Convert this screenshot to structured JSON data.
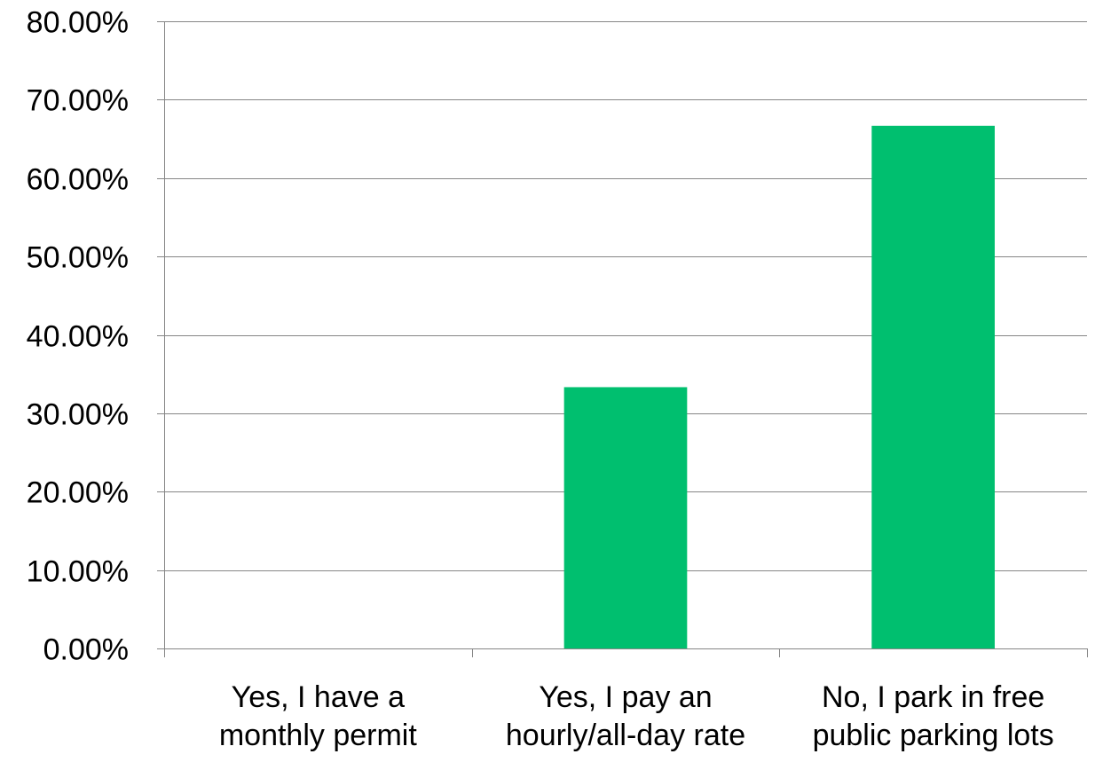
{
  "chart_data": {
    "type": "bar",
    "title": "",
    "xlabel": "",
    "ylabel": "",
    "categories": [
      [
        "Yes, I have a",
        "monthly permit"
      ],
      [
        "Yes, I pay an",
        "hourly/all-day rate"
      ],
      [
        "No, I park in free",
        "public parking lots"
      ]
    ],
    "values": [
      0,
      33.33,
      66.67
    ],
    "ylim": [
      0,
      80
    ],
    "yticks": [
      0,
      10,
      20,
      30,
      40,
      50,
      60,
      70,
      80
    ],
    "ytick_labels": [
      "0.00%",
      "10.00%",
      "20.00%",
      "30.00%",
      "40.00%",
      "50.00%",
      "60.00%",
      "70.00%",
      "80.00%"
    ],
    "grid": true,
    "legend": "none",
    "bar_color": "#00BF6F",
    "grid_color": "#868686"
  }
}
